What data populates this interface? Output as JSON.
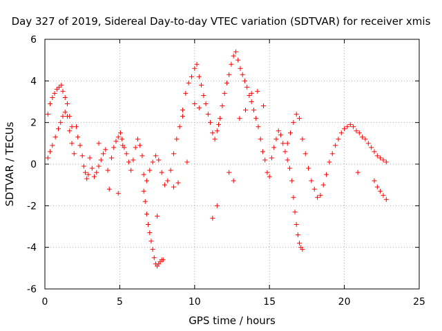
{
  "chart_data": {
    "type": "scatter",
    "title": "Day 327 of 2019, Sidereal Day-to-day VTEC variation (SDTVAR) for receiver xmis",
    "xlabel": "GPS time / hours",
    "ylabel": "SDTVAR / TECUs",
    "xlim": [
      0,
      25
    ],
    "ylim": [
      -6,
      6
    ],
    "xticks": [
      0,
      5,
      10,
      15,
      20,
      25
    ],
    "yticks": [
      -6,
      -4,
      -2,
      0,
      2,
      4,
      6
    ],
    "grid": true,
    "marker": "+",
    "color": "#ff0000",
    "series": [
      {
        "name": "SDTVAR",
        "x": [
          0.2,
          0.35,
          0.5,
          0.65,
          0.8,
          0.95,
          1.1,
          1.2,
          1.35,
          1.5,
          1.65,
          1.8,
          0.2,
          0.35,
          0.5,
          0.7,
          0.9,
          1.05,
          1.2,
          1.35,
          1.5,
          1.65,
          1.8,
          1.95,
          2.1,
          2.2,
          2.35,
          2.5,
          2.6,
          2.7,
          2.8,
          2.9,
          3.0,
          3.15,
          3.3,
          3.45,
          3.6,
          3.75,
          3.9,
          4.05,
          4.2,
          4.3,
          4.45,
          4.6,
          4.75,
          4.9,
          5.05,
          5.15,
          5.3,
          5.45,
          5.6,
          5.75,
          5.9,
          6.05,
          6.2,
          6.35,
          6.5,
          6.6,
          6.7,
          6.8,
          6.9,
          7.0,
          7.1,
          7.2,
          7.3,
          7.4,
          7.5,
          7.6,
          7.7,
          7.8,
          7.9,
          6.6,
          6.8,
          7.0,
          7.2,
          7.4,
          7.6,
          7.8,
          8.0,
          8.2,
          8.4,
          8.6,
          8.8,
          9.0,
          9.2,
          9.4,
          9.6,
          9.8,
          10.0,
          10.15,
          10.3,
          10.45,
          10.6,
          10.75,
          10.9,
          11.05,
          11.2,
          11.35,
          11.5,
          11.6,
          11.7,
          11.85,
          12.0,
          12.15,
          12.3,
          12.45,
          12.6,
          12.75,
          12.9,
          13.05,
          13.2,
          13.35,
          13.5,
          13.65,
          13.8,
          13.95,
          14.1,
          14.25,
          14.4,
          14.55,
          14.7,
          14.85,
          15.0,
          15.15,
          15.3,
          15.45,
          15.6,
          15.75,
          15.9,
          16.05,
          16.2,
          16.35,
          16.5,
          16.6,
          16.7,
          16.8,
          16.9,
          17.0,
          17.1,
          17.2,
          16.2,
          16.4,
          16.6,
          16.8,
          17.0,
          17.2,
          17.4,
          17.6,
          17.8,
          18.0,
          18.2,
          18.4,
          18.6,
          18.8,
          19.0,
          19.2,
          19.4,
          19.6,
          19.8,
          20.0,
          20.2,
          20.4,
          20.6,
          20.8,
          21.0,
          21.2,
          21.4,
          21.6,
          21.8,
          22.0,
          22.2,
          22.4,
          22.6,
          22.8,
          22.0,
          22.2,
          22.4,
          22.6,
          22.8,
          10.0,
          10.3,
          12.3,
          12.6,
          11.2,
          11.5,
          13.0,
          13.4,
          13.8,
          14.2,
          14.6,
          9.2,
          9.5,
          8.9,
          8.6,
          7.5,
          5.2,
          20.9,
          3.6,
          4.9
        ],
        "y": [
          2.4,
          2.9,
          3.2,
          3.4,
          3.6,
          3.7,
          3.8,
          3.5,
          3.2,
          2.9,
          2.3,
          1.8,
          0.3,
          0.6,
          0.9,
          1.3,
          1.7,
          2.0,
          2.3,
          2.5,
          2.3,
          1.6,
          1.0,
          0.5,
          1.8,
          1.3,
          0.9,
          0.4,
          -0.1,
          -0.4,
          -0.7,
          -0.5,
          0.3,
          -0.2,
          -0.6,
          -0.4,
          -0.1,
          0.2,
          0.5,
          0.7,
          -0.3,
          -1.2,
          0.3,
          0.8,
          1.1,
          1.3,
          1.5,
          1.2,
          0.8,
          0.5,
          0.1,
          -0.3,
          0.2,
          0.8,
          1.2,
          0.9,
          0.4,
          -1.3,
          -1.8,
          -2.4,
          -2.9,
          -3.3,
          -3.7,
          -4.1,
          -4.5,
          -4.8,
          -4.9,
          -4.8,
          -4.7,
          -4.6,
          -4.6,
          -0.5,
          -0.8,
          -0.3,
          0.1,
          0.4,
          0.2,
          -0.4,
          -1.0,
          -0.8,
          -0.3,
          0.5,
          1.2,
          1.8,
          2.6,
          3.4,
          3.9,
          4.2,
          4.6,
          4.8,
          4.2,
          3.8,
          3.3,
          2.9,
          2.4,
          2.0,
          1.5,
          1.2,
          1.6,
          1.9,
          2.2,
          2.8,
          3.4,
          3.9,
          4.3,
          4.8,
          5.2,
          5.4,
          5.0,
          4.6,
          4.3,
          4.0,
          3.7,
          3.3,
          3.0,
          2.6,
          2.2,
          1.8,
          1.2,
          0.6,
          0.2,
          -0.4,
          -0.6,
          0.3,
          0.8,
          1.2,
          1.6,
          1.4,
          1.0,
          0.6,
          0.2,
          -0.2,
          -0.8,
          -1.6,
          -2.3,
          -2.9,
          -3.4,
          -3.8,
          -4.0,
          -4.1,
          1.0,
          1.5,
          2.0,
          2.4,
          2.2,
          1.2,
          0.5,
          -0.2,
          -0.8,
          -1.2,
          -1.6,
          -1.5,
          -1.0,
          -0.5,
          0.1,
          0.5,
          0.9,
          1.2,
          1.5,
          1.7,
          1.8,
          1.9,
          1.8,
          1.6,
          1.5,
          1.3,
          1.2,
          1.0,
          0.8,
          0.6,
          0.4,
          0.3,
          0.2,
          0.1,
          -0.8,
          -1.1,
          -1.3,
          -1.5,
          -1.7,
          2.9,
          2.7,
          -0.4,
          -0.8,
          -2.6,
          -2.0,
          2.2,
          2.6,
          3.4,
          3.5,
          2.8,
          2.3,
          0.1,
          -0.9,
          -1.1,
          -2.5,
          0.9,
          -0.4,
          1.0,
          -1.4
        ]
      }
    ]
  }
}
